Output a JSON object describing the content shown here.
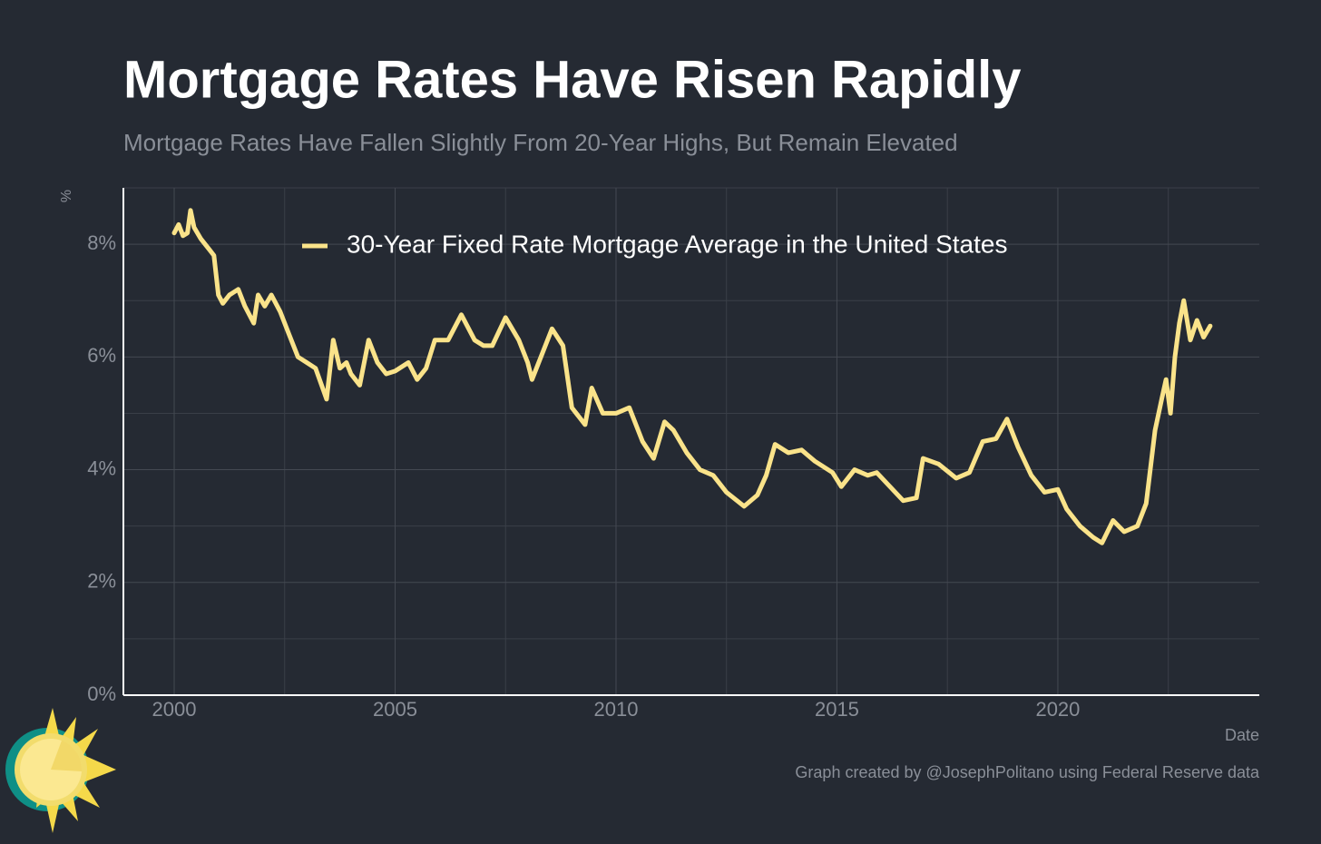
{
  "chart_data": {
    "type": "line",
    "title": "Mortgage Rates Have Risen Rapidly",
    "subtitle": "Mortgage Rates Have Fallen Slightly From 20-Year Highs, But Remain Elevated",
    "y_label": "%",
    "x_label": "Date",
    "caption": "Graph created by @JosephPolitano using Federal Reserve data",
    "xlim": [
      1998.85,
      2024.56
    ],
    "ylim": [
      0,
      9
    ],
    "xticks": [
      2000,
      2005,
      2010,
      2015,
      2020
    ],
    "xminorticks": [
      2002.5,
      2007.5,
      2012.5,
      2017.5,
      2022.5
    ],
    "yticks": [
      {
        "value": 0,
        "label": "0%"
      },
      {
        "value": 2,
        "label": "2%"
      },
      {
        "value": 4,
        "label": "4%"
      },
      {
        "value": 6,
        "label": "6%"
      },
      {
        "value": 8,
        "label": "8%"
      }
    ],
    "yminorticks": [
      1,
      3,
      5,
      7,
      9
    ],
    "grid": true,
    "legend": "top",
    "x": [
      2000.0,
      2000.1,
      2000.2,
      2000.3,
      2000.37,
      2000.45,
      2000.6,
      2000.8,
      2000.9,
      2001.0,
      2001.1,
      2001.25,
      2001.45,
      2001.6,
      2001.8,
      2001.9,
      2002.05,
      2002.2,
      2002.4,
      2002.6,
      2002.8,
      2003.0,
      2003.2,
      2003.45,
      2003.6,
      2003.75,
      2003.9,
      2004.0,
      2004.2,
      2004.4,
      2004.6,
      2004.8,
      2005.0,
      2005.3,
      2005.5,
      2005.7,
      2005.9,
      2006.2,
      2006.5,
      2006.8,
      2007.0,
      2007.2,
      2007.5,
      2007.8,
      2008.0,
      2008.1,
      2008.3,
      2008.55,
      2008.8,
      2009.0,
      2009.3,
      2009.45,
      2009.7,
      2010.0,
      2010.3,
      2010.6,
      2010.85,
      2011.1,
      2011.3,
      2011.6,
      2011.9,
      2012.2,
      2012.5,
      2012.9,
      2013.2,
      2013.4,
      2013.6,
      2013.9,
      2014.2,
      2014.5,
      2014.9,
      2015.1,
      2015.4,
      2015.7,
      2015.9,
      2016.2,
      2016.5,
      2016.8,
      2016.95,
      2017.3,
      2017.7,
      2018.0,
      2018.3,
      2018.6,
      2018.85,
      2019.1,
      2019.4,
      2019.7,
      2020.0,
      2020.2,
      2020.5,
      2020.8,
      2021.0,
      2021.25,
      2021.5,
      2021.8,
      2022.0,
      2022.2,
      2022.35,
      2022.45,
      2022.55,
      2022.65,
      2022.75,
      2022.85,
      2023.0,
      2023.15,
      2023.3,
      2023.45
    ],
    "series": [
      {
        "name": "30-Year Fixed Rate Mortgage Average in the United States",
        "color": "#fae38a",
        "values": [
          8.2,
          8.35,
          8.15,
          8.2,
          8.6,
          8.3,
          8.1,
          7.9,
          7.8,
          7.1,
          6.95,
          7.1,
          7.2,
          6.9,
          6.6,
          7.1,
          6.9,
          7.1,
          6.8,
          6.4,
          6.0,
          5.9,
          5.8,
          5.25,
          6.3,
          5.8,
          5.9,
          5.7,
          5.5,
          6.3,
          5.9,
          5.7,
          5.75,
          5.9,
          5.6,
          5.8,
          6.3,
          6.3,
          6.75,
          6.3,
          6.2,
          6.2,
          6.7,
          6.3,
          5.9,
          5.6,
          6.0,
          6.5,
          6.2,
          5.1,
          4.8,
          5.45,
          5.0,
          5.0,
          5.1,
          4.5,
          4.2,
          4.85,
          4.7,
          4.3,
          4.0,
          3.9,
          3.6,
          3.35,
          3.55,
          3.9,
          4.45,
          4.3,
          4.35,
          4.15,
          3.95,
          3.7,
          4.0,
          3.9,
          3.95,
          3.7,
          3.45,
          3.5,
          4.2,
          4.1,
          3.85,
          3.95,
          4.5,
          4.55,
          4.9,
          4.4,
          3.9,
          3.6,
          3.65,
          3.3,
          3.0,
          2.8,
          2.7,
          3.1,
          2.9,
          3.0,
          3.4,
          4.7,
          5.25,
          5.6,
          5.0,
          6.0,
          6.6,
          7.0,
          6.3,
          6.65,
          6.35,
          6.55
        ]
      }
    ]
  }
}
